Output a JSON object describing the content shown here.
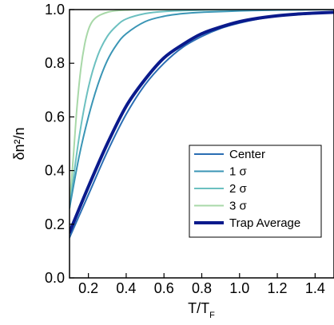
{
  "chart_data": {
    "type": "line",
    "title": "",
    "xlabel_main": "T/T",
    "xlabel_sub": "F",
    "ylabel": "δn²/n",
    "xlim": [
      0.1,
      1.5
    ],
    "ylim": [
      0.0,
      1.0
    ],
    "xticks": [
      0.2,
      0.4,
      0.6,
      0.8,
      1.0,
      1.2,
      1.4
    ],
    "xtick_labels": [
      "0.2",
      "0.4",
      "0.6",
      "0.8",
      "1.0",
      "1.2",
      "1.4"
    ],
    "yticks": [
      0.0,
      0.2,
      0.4,
      0.6,
      0.8,
      1.0
    ],
    "ytick_labels": [
      "0.0",
      "0.2",
      "0.4",
      "0.6",
      "0.8",
      "1.0"
    ],
    "grid": false,
    "legend_position": "lower-right",
    "series": [
      {
        "name": "Center",
        "color": "#2a6db3",
        "width": 2,
        "x": [
          0.1,
          0.2,
          0.3,
          0.4,
          0.5,
          0.6,
          0.7,
          0.8,
          0.9,
          1.0,
          1.1,
          1.2,
          1.3,
          1.4,
          1.5
        ],
        "y": [
          0.15,
          0.31,
          0.47,
          0.61,
          0.72,
          0.8,
          0.86,
          0.9,
          0.93,
          0.95,
          0.965,
          0.975,
          0.982,
          0.986,
          0.99
        ]
      },
      {
        "name": "1 σ",
        "color": "#3a95b5",
        "width": 2,
        "x": [
          0.1,
          0.15,
          0.2,
          0.25,
          0.3,
          0.35,
          0.4,
          0.5,
          0.6,
          0.7,
          0.8,
          1.0,
          1.2,
          1.5
        ],
        "y": [
          0.26,
          0.45,
          0.6,
          0.72,
          0.81,
          0.87,
          0.91,
          0.955,
          0.975,
          0.985,
          0.99,
          0.995,
          0.998,
          1.0
        ]
      },
      {
        "name": "2 σ",
        "color": "#6cc0c0",
        "width": 2,
        "x": [
          0.1,
          0.15,
          0.2,
          0.25,
          0.3,
          0.35,
          0.4,
          0.5,
          0.6,
          0.8,
          1.0,
          1.5
        ],
        "y": [
          0.26,
          0.52,
          0.71,
          0.83,
          0.9,
          0.94,
          0.965,
          0.985,
          0.993,
          0.998,
          1.0,
          1.0
        ]
      },
      {
        "name": "3 σ",
        "color": "#a8d8a8",
        "width": 2,
        "x": [
          0.1,
          0.12,
          0.14,
          0.16,
          0.18,
          0.2,
          0.22,
          0.25,
          0.3,
          0.35,
          0.4,
          0.5,
          0.7,
          1.0,
          1.5
        ],
        "y": [
          0.27,
          0.45,
          0.64,
          0.78,
          0.87,
          0.925,
          0.955,
          0.975,
          0.99,
          0.996,
          0.998,
          1.0,
          1.0,
          1.0,
          1.0
        ]
      },
      {
        "name": "Trap Average",
        "color": "#0a1a8c",
        "width": 4,
        "x": [
          0.1,
          0.2,
          0.3,
          0.4,
          0.5,
          0.6,
          0.7,
          0.8,
          0.9,
          1.0,
          1.1,
          1.2,
          1.3,
          1.4,
          1.5
        ],
        "y": [
          0.17,
          0.34,
          0.5,
          0.64,
          0.74,
          0.82,
          0.87,
          0.91,
          0.935,
          0.955,
          0.968,
          0.977,
          0.983,
          0.987,
          0.99
        ]
      }
    ]
  }
}
